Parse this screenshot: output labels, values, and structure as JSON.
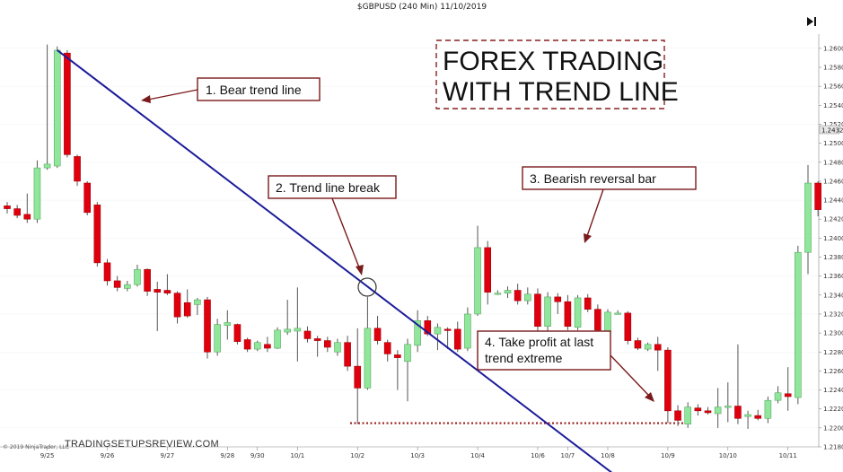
{
  "chart_data": {
    "type": "candlestick",
    "title": "$GBPUSD (240 Min)  11/10/2019",
    "ylim": [
      1.218,
      1.2615
    ],
    "y_ticks": [
      "1.2600",
      "1.2580",
      "1.2560",
      "1.2540",
      "1.2520",
      "1.2500",
      "1.2480",
      "1.2460",
      "1.2440",
      "1.2420",
      "1.2400",
      "1.2380",
      "1.2360",
      "1.2340",
      "1.2320",
      "1.2300",
      "1.2280",
      "1.2260",
      "1.2240",
      "1.2220",
      "1.2200",
      "1.2180"
    ],
    "x_labels": [
      {
        "label": "9/25",
        "bar": 4
      },
      {
        "label": "9/26",
        "bar": 10
      },
      {
        "label": "9/27",
        "bar": 16
      },
      {
        "label": "9/28",
        "bar": 22
      },
      {
        "label": "9/30",
        "bar": 25
      },
      {
        "label": "10/1",
        "bar": 29
      },
      {
        "label": "10/2",
        "bar": 35
      },
      {
        "label": "10/3",
        "bar": 41
      },
      {
        "label": "10/4",
        "bar": 47
      },
      {
        "label": "10/6",
        "bar": 53
      },
      {
        "label": "10/7",
        "bar": 56
      },
      {
        "label": "10/8",
        "bar": 60
      },
      {
        "label": "10/9",
        "bar": 66
      },
      {
        "label": "10/10",
        "bar": 72
      },
      {
        "label": "10/11",
        "bar": 78
      }
    ],
    "candles": [
      {
        "o": 1.2434,
        "h": 1.2438,
        "l": 1.2426,
        "c": 1.2431
      },
      {
        "o": 1.2431,
        "h": 1.2435,
        "l": 1.2421,
        "c": 1.2424
      },
      {
        "o": 1.2425,
        "h": 1.2447,
        "l": 1.2416,
        "c": 1.242
      },
      {
        "o": 1.242,
        "h": 1.2482,
        "l": 1.2416,
        "c": 1.2474
      },
      {
        "o": 1.2474,
        "h": 1.2604,
        "l": 1.2472,
        "c": 1.2478
      },
      {
        "o": 1.2476,
        "h": 1.2602,
        "l": 1.2474,
        "c": 1.2598
      },
      {
        "o": 1.2595,
        "h": 1.2598,
        "l": 1.2485,
        "c": 1.2488
      },
      {
        "o": 1.2486,
        "h": 1.2488,
        "l": 1.2455,
        "c": 1.246
      },
      {
        "o": 1.2458,
        "h": 1.246,
        "l": 1.2424,
        "c": 1.2427
      },
      {
        "o": 1.2435,
        "h": 1.2438,
        "l": 1.237,
        "c": 1.2374
      },
      {
        "o": 1.2374,
        "h": 1.2378,
        "l": 1.235,
        "c": 1.2355
      },
      {
        "o": 1.2355,
        "h": 1.236,
        "l": 1.2344,
        "c": 1.2348
      },
      {
        "o": 1.2347,
        "h": 1.2355,
        "l": 1.2344,
        "c": 1.2351
      },
      {
        "o": 1.2351,
        "h": 1.2372,
        "l": 1.2349,
        "c": 1.2367
      },
      {
        "o": 1.2367,
        "h": 1.2368,
        "l": 1.2339,
        "c": 1.2344
      },
      {
        "o": 1.2346,
        "h": 1.2354,
        "l": 1.2302,
        "c": 1.2343
      },
      {
        "o": 1.2345,
        "h": 1.2362,
        "l": 1.234,
        "c": 1.2342
      },
      {
        "o": 1.2342,
        "h": 1.2344,
        "l": 1.231,
        "c": 1.2317
      },
      {
        "o": 1.2332,
        "h": 1.2346,
        "l": 1.2316,
        "c": 1.2318
      },
      {
        "o": 1.233,
        "h": 1.2337,
        "l": 1.2319,
        "c": 1.2335
      },
      {
        "o": 1.2335,
        "h": 1.2338,
        "l": 1.2273,
        "c": 1.228
      },
      {
        "o": 1.228,
        "h": 1.2315,
        "l": 1.2276,
        "c": 1.2309
      },
      {
        "o": 1.2308,
        "h": 1.2324,
        "l": 1.2293,
        "c": 1.2311
      },
      {
        "o": 1.2309,
        "h": 1.231,
        "l": 1.2288,
        "c": 1.2291
      },
      {
        "o": 1.2293,
        "h": 1.2295,
        "l": 1.228,
        "c": 1.2283
      },
      {
        "o": 1.2283,
        "h": 1.2292,
        "l": 1.2281,
        "c": 1.229
      },
      {
        "o": 1.2288,
        "h": 1.2296,
        "l": 1.228,
        "c": 1.2284
      },
      {
        "o": 1.2284,
        "h": 1.2306,
        "l": 1.2283,
        "c": 1.2303
      },
      {
        "o": 1.2301,
        "h": 1.2335,
        "l": 1.2298,
        "c": 1.2304
      },
      {
        "o": 1.2302,
        "h": 1.2348,
        "l": 1.227,
        "c": 1.2305
      },
      {
        "o": 1.2302,
        "h": 1.2307,
        "l": 1.229,
        "c": 1.2294
      },
      {
        "o": 1.2294,
        "h": 1.2297,
        "l": 1.2275,
        "c": 1.2292
      },
      {
        "o": 1.2292,
        "h": 1.2296,
        "l": 1.228,
        "c": 1.2285
      },
      {
        "o": 1.228,
        "h": 1.2294,
        "l": 1.2276,
        "c": 1.229
      },
      {
        "o": 1.229,
        "h": 1.2297,
        "l": 1.226,
        "c": 1.2265
      },
      {
        "o": 1.2265,
        "h": 1.2305,
        "l": 1.2204,
        "c": 1.2242
      },
      {
        "o": 1.2242,
        "h": 1.2338,
        "l": 1.224,
        "c": 1.2305
      },
      {
        "o": 1.2305,
        "h": 1.2318,
        "l": 1.2288,
        "c": 1.2292
      },
      {
        "o": 1.229,
        "h": 1.2293,
        "l": 1.227,
        "c": 1.2278
      },
      {
        "o": 1.2277,
        "h": 1.2282,
        "l": 1.224,
        "c": 1.2274
      },
      {
        "o": 1.227,
        "h": 1.2294,
        "l": 1.2228,
        "c": 1.2288
      },
      {
        "o": 1.2287,
        "h": 1.2324,
        "l": 1.228,
        "c": 1.2313
      },
      {
        "o": 1.2313,
        "h": 1.2318,
        "l": 1.2297,
        "c": 1.2299
      },
      {
        "o": 1.2299,
        "h": 1.231,
        "l": 1.2282,
        "c": 1.2306
      },
      {
        "o": 1.2304,
        "h": 1.2306,
        "l": 1.2283,
        "c": 1.2303
      },
      {
        "o": 1.2304,
        "h": 1.2312,
        "l": 1.228,
        "c": 1.2283
      },
      {
        "o": 1.2284,
        "h": 1.2327,
        "l": 1.2281,
        "c": 1.232
      },
      {
        "o": 1.232,
        "h": 1.2413,
        "l": 1.2318,
        "c": 1.239
      },
      {
        "o": 1.239,
        "h": 1.2397,
        "l": 1.233,
        "c": 1.2343
      },
      {
        "o": 1.2342,
        "h": 1.2345,
        "l": 1.234,
        "c": 1.2342
      },
      {
        "o": 1.2342,
        "h": 1.2349,
        "l": 1.2337,
        "c": 1.2345
      },
      {
        "o": 1.2345,
        "h": 1.2352,
        "l": 1.233,
        "c": 1.2334
      },
      {
        "o": 1.2334,
        "h": 1.2348,
        "l": 1.233,
        "c": 1.2341
      },
      {
        "o": 1.2341,
        "h": 1.2347,
        "l": 1.2278,
        "c": 1.2307
      },
      {
        "o": 1.2307,
        "h": 1.2343,
        "l": 1.2295,
        "c": 1.2338
      },
      {
        "o": 1.2338,
        "h": 1.2342,
        "l": 1.232,
        "c": 1.2333
      },
      {
        "o": 1.2333,
        "h": 1.234,
        "l": 1.2303,
        "c": 1.2307
      },
      {
        "o": 1.2306,
        "h": 1.234,
        "l": 1.2303,
        "c": 1.2337
      },
      {
        "o": 1.2337,
        "h": 1.2341,
        "l": 1.2322,
        "c": 1.2325
      },
      {
        "o": 1.2325,
        "h": 1.233,
        "l": 1.2298,
        "c": 1.2303
      },
      {
        "o": 1.2301,
        "h": 1.2325,
        "l": 1.229,
        "c": 1.2322
      },
      {
        "o": 1.2321,
        "h": 1.2324,
        "l": 1.232,
        "c": 1.2321
      },
      {
        "o": 1.2321,
        "h": 1.2323,
        "l": 1.2288,
        "c": 1.2292
      },
      {
        "o": 1.2292,
        "h": 1.2295,
        "l": 1.2282,
        "c": 1.2284
      },
      {
        "o": 1.2283,
        "h": 1.229,
        "l": 1.2281,
        "c": 1.2288
      },
      {
        "o": 1.2288,
        "h": 1.2296,
        "l": 1.226,
        "c": 1.2282
      },
      {
        "o": 1.2282,
        "h": 1.2285,
        "l": 1.2205,
        "c": 1.2218
      },
      {
        "o": 1.2218,
        "h": 1.2224,
        "l": 1.2202,
        "c": 1.2208
      },
      {
        "o": 1.2204,
        "h": 1.2227,
        "l": 1.22,
        "c": 1.2222
      },
      {
        "o": 1.2221,
        "h": 1.2225,
        "l": 1.2213,
        "c": 1.2218
      },
      {
        "o": 1.2218,
        "h": 1.2222,
        "l": 1.2214,
        "c": 1.2216
      },
      {
        "o": 1.2215,
        "h": 1.2242,
        "l": 1.22,
        "c": 1.2222
      },
      {
        "o": 1.2222,
        "h": 1.2248,
        "l": 1.2206,
        "c": 1.2223
      },
      {
        "o": 1.2223,
        "h": 1.2288,
        "l": 1.2204,
        "c": 1.221
      },
      {
        "o": 1.2212,
        "h": 1.2218,
        "l": 1.2199,
        "c": 1.2214
      },
      {
        "o": 1.2213,
        "h": 1.2219,
        "l": 1.2208,
        "c": 1.221
      },
      {
        "o": 1.221,
        "h": 1.2233,
        "l": 1.2205,
        "c": 1.2229
      },
      {
        "o": 1.2229,
        "h": 1.2244,
        "l": 1.2226,
        "c": 1.2237
      },
      {
        "o": 1.2236,
        "h": 1.2264,
        "l": 1.2218,
        "c": 1.2233
      },
      {
        "o": 1.2232,
        "h": 1.2392,
        "l": 1.2225,
        "c": 1.2385
      },
      {
        "o": 1.2385,
        "h": 1.2477,
        "l": 1.2362,
        "c": 1.2458
      },
      {
        "o": 1.2458,
        "h": 1.246,
        "l": 1.2423,
        "c": 1.243
      }
    ],
    "trend_line": {
      "from": {
        "bar": 5,
        "y": 1.2598
      },
      "to": {
        "bar": 61,
        "y": 1.2148
      }
    },
    "target_line_y": 1.2205,
    "current_price": "1.2432",
    "annotations": [
      "1. Bear trend line",
      "2. Trend line break",
      "3. Bearish reversal bar",
      "4. Take profit at last",
      "trend extreme"
    ],
    "headline": [
      "FOREX TRADING",
      "WITH TREND LINE"
    ],
    "credit": "© 2019 NinjaTrader, LLC",
    "brand": "TRADINGSETUPSREVIEW.COM",
    "colors": {
      "up": "#90e69a",
      "down": "#e0000d",
      "wick": "#555555",
      "trend": "#1c1c9a",
      "annotation": "#7a1a1a",
      "target": "#9a1f1f"
    }
  }
}
